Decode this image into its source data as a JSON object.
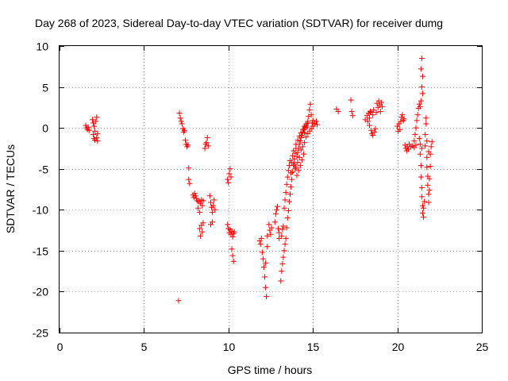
{
  "chart_data": {
    "type": "scatter",
    "title": "Day 268 of 2023, Sidereal Day-to-day VTEC variation (SDTVAR) for receiver dumg",
    "xlabel": "GPS time / hours",
    "ylabel": "SDTVAR / TECUs",
    "xlim": [
      0,
      25
    ],
    "ylim": [
      -25,
      10
    ],
    "xticks": [
      0,
      5,
      10,
      15,
      20,
      25
    ],
    "yticks": [
      -25,
      -20,
      -15,
      -10,
      -5,
      0,
      5,
      10
    ],
    "grid": true,
    "marker": "+",
    "color": "#ff0000",
    "series": [
      {
        "name": "SDTVAR",
        "points": [
          [
            1.55,
            0.3
          ],
          [
            1.6,
            0.0
          ],
          [
            1.65,
            -0.2
          ],
          [
            1.7,
            0.1
          ],
          [
            1.75,
            -0.3
          ],
          [
            1.95,
            1.0
          ],
          [
            2.0,
            0.6
          ],
          [
            2.0,
            -0.8
          ],
          [
            2.05,
            -1.3
          ],
          [
            2.05,
            0.2
          ],
          [
            2.1,
            -0.4
          ],
          [
            2.1,
            -1.5
          ],
          [
            2.15,
            0.8
          ],
          [
            2.2,
            1.3
          ],
          [
            2.2,
            -1.2
          ],
          [
            2.25,
            -0.7
          ],
          [
            2.25,
            -1.6
          ],
          [
            7.1,
            1.8
          ],
          [
            7.15,
            1.2
          ],
          [
            7.2,
            0.8
          ],
          [
            7.25,
            0.5
          ],
          [
            7.3,
            -0.1
          ],
          [
            7.35,
            -0.5
          ],
          [
            7.4,
            -0.3
          ],
          [
            7.45,
            -1.5
          ],
          [
            7.5,
            -2.0
          ],
          [
            7.55,
            -2.3
          ],
          [
            7.6,
            -2.1
          ],
          [
            7.65,
            -4.9
          ],
          [
            7.65,
            -6.3
          ],
          [
            7.7,
            -6.8
          ],
          [
            7.05,
            -21.1
          ],
          [
            7.9,
            -8.2
          ],
          [
            7.95,
            -8.5
          ],
          [
            8.0,
            -8.0
          ],
          [
            8.05,
            -8.3
          ],
          [
            8.1,
            -8.6
          ],
          [
            8.15,
            -8.9
          ],
          [
            8.2,
            -9.8
          ],
          [
            8.25,
            -9.0
          ],
          [
            8.3,
            -10.3
          ],
          [
            8.35,
            -9.2
          ],
          [
            8.4,
            -8.8
          ],
          [
            8.45,
            -9.5
          ],
          [
            8.5,
            -8.9
          ],
          [
            8.3,
            -12.3
          ],
          [
            8.35,
            -13.2
          ],
          [
            8.4,
            -11.9
          ],
          [
            8.45,
            -12.7
          ],
          [
            8.5,
            -11.6
          ],
          [
            8.6,
            -2.5
          ],
          [
            8.65,
            -2.0
          ],
          [
            8.7,
            -1.8
          ],
          [
            8.75,
            -1.2
          ],
          [
            8.8,
            -2.2
          ],
          [
            8.9,
            -8.3
          ],
          [
            8.95,
            -9.1
          ],
          [
            9.0,
            -9.7
          ],
          [
            9.05,
            -10.3
          ],
          [
            9.1,
            -9.5
          ],
          [
            9.15,
            -8.8
          ],
          [
            9.2,
            -10.0
          ],
          [
            8.95,
            -11.8
          ],
          [
            9.05,
            -11.5
          ],
          [
            9.95,
            -6.3
          ],
          [
            10.0,
            -6.7
          ],
          [
            10.05,
            -5.6
          ],
          [
            10.1,
            -5.0
          ],
          [
            10.15,
            -6.0
          ],
          [
            9.95,
            -11.8
          ],
          [
            10.0,
            -12.3
          ],
          [
            10.05,
            -12.8
          ],
          [
            10.1,
            -12.4
          ],
          [
            10.15,
            -13.0
          ],
          [
            10.2,
            -12.6
          ],
          [
            10.25,
            -13.3
          ],
          [
            10.3,
            -12.9
          ],
          [
            10.35,
            -12.7
          ],
          [
            10.2,
            -14.8
          ],
          [
            10.25,
            -15.6
          ],
          [
            10.3,
            -16.3
          ],
          [
            11.85,
            -13.8
          ],
          [
            11.9,
            -14.2
          ],
          [
            11.95,
            -13.5
          ],
          [
            12.0,
            -15.2
          ],
          [
            12.05,
            -16.0
          ],
          [
            12.1,
            -17.0
          ],
          [
            12.15,
            -18.2
          ],
          [
            12.2,
            -19.5
          ],
          [
            12.25,
            -20.6
          ],
          [
            12.2,
            -16.5
          ],
          [
            12.3,
            -14.5
          ],
          [
            12.3,
            -13.2
          ],
          [
            12.4,
            -11.8
          ],
          [
            12.45,
            -12.5
          ],
          [
            12.5,
            -13.0
          ],
          [
            12.55,
            -12.2
          ],
          [
            12.75,
            -11.5
          ],
          [
            12.8,
            -10.5
          ],
          [
            12.85,
            -10.0
          ],
          [
            12.9,
            -9.6
          ],
          [
            12.95,
            -12.3
          ],
          [
            13.0,
            -12.8
          ],
          [
            13.0,
            -13.5
          ],
          [
            13.15,
            -13.2
          ],
          [
            13.2,
            -12.4
          ],
          [
            13.25,
            -12.0
          ],
          [
            13.1,
            -18.7
          ],
          [
            13.15,
            -17.5
          ],
          [
            13.2,
            -16.6
          ],
          [
            13.25,
            -15.8
          ],
          [
            13.3,
            -15.0
          ],
          [
            13.35,
            -14.2
          ],
          [
            13.4,
            -13.5
          ],
          [
            13.45,
            -12.2
          ],
          [
            13.5,
            -11.0
          ],
          [
            13.55,
            -10.1
          ],
          [
            13.6,
            -9.0
          ],
          [
            13.65,
            -8.1
          ],
          [
            13.7,
            -7.2
          ],
          [
            13.75,
            -6.3
          ],
          [
            13.8,
            -5.4
          ],
          [
            13.85,
            -4.6
          ],
          [
            13.9,
            -3.8
          ],
          [
            13.95,
            -3.1
          ],
          [
            14.0,
            -2.5
          ],
          [
            13.3,
            -9.8
          ],
          [
            13.35,
            -8.8
          ],
          [
            13.4,
            -7.9
          ],
          [
            13.45,
            -6.9
          ],
          [
            13.5,
            -6.0
          ],
          [
            13.55,
            -5.2
          ],
          [
            13.6,
            -4.6
          ],
          [
            13.65,
            -4.0
          ],
          [
            13.7,
            -5.5
          ],
          [
            13.75,
            -4.2
          ],
          [
            13.8,
            -3.4
          ],
          [
            13.85,
            -2.8
          ],
          [
            13.9,
            -4.4
          ],
          [
            13.95,
            -5.0
          ],
          [
            14.0,
            -2.0
          ],
          [
            14.1,
            -1.5
          ],
          [
            14.2,
            -1.0
          ],
          [
            14.3,
            -0.6
          ],
          [
            14.4,
            -0.2
          ],
          [
            14.5,
            0.2
          ],
          [
            14.6,
            0.5
          ],
          [
            14.7,
            0.8
          ],
          [
            14.75,
            1.4
          ],
          [
            14.8,
            2.2
          ],
          [
            14.85,
            2.9
          ],
          [
            14.9,
            1.6
          ],
          [
            14.95,
            0.6
          ],
          [
            15.0,
            0.9
          ],
          [
            15.1,
            0.5
          ],
          [
            15.2,
            0.8
          ],
          [
            15.25,
            0.4
          ],
          [
            14.05,
            -3.5
          ],
          [
            14.1,
            -3.0
          ],
          [
            14.15,
            -2.5
          ],
          [
            14.2,
            -2.0
          ],
          [
            14.25,
            -1.6
          ],
          [
            14.3,
            -1.2
          ],
          [
            14.35,
            -0.9
          ],
          [
            14.4,
            -0.5
          ],
          [
            14.45,
            -0.2
          ],
          [
            14.5,
            -0.6
          ],
          [
            14.55,
            0.0
          ],
          [
            14.6,
            0.3
          ],
          [
            14.65,
            0.1
          ],
          [
            14.7,
            0.6
          ],
          [
            14.0,
            -4.8
          ],
          [
            14.1,
            -4.2
          ],
          [
            14.2,
            -3.6
          ],
          [
            14.3,
            -2.7
          ],
          [
            14.4,
            -2.3
          ],
          [
            14.5,
            -1.8
          ],
          [
            14.6,
            -1.1
          ],
          [
            14.7,
            -0.7
          ],
          [
            14.8,
            -0.4
          ],
          [
            14.9,
            -0.1
          ],
          [
            15.0,
            0.2
          ],
          [
            14.05,
            -5.8
          ],
          [
            14.15,
            -5.2
          ],
          [
            14.25,
            -4.6
          ],
          [
            14.35,
            -3.9
          ],
          [
            14.45,
            -3.2
          ],
          [
            16.4,
            2.3
          ],
          [
            16.5,
            2.0
          ],
          [
            17.25,
            3.4
          ],
          [
            17.3,
            2.0
          ],
          [
            17.35,
            1.5
          ],
          [
            18.1,
            1.0
          ],
          [
            18.2,
            1.5
          ],
          [
            18.25,
            0.8
          ],
          [
            18.3,
            1.8
          ],
          [
            18.35,
            0.3
          ],
          [
            18.4,
            2.0
          ],
          [
            18.45,
            -0.3
          ],
          [
            18.5,
            -0.7
          ],
          [
            18.55,
            1.6
          ],
          [
            18.6,
            2.2
          ],
          [
            18.65,
            -0.5
          ],
          [
            18.7,
            -0.1
          ],
          [
            18.75,
            1.9
          ],
          [
            18.8,
            3.0
          ],
          [
            18.85,
            2.5
          ],
          [
            18.9,
            3.3
          ],
          [
            18.95,
            2.8
          ],
          [
            19.0,
            2.0
          ],
          [
            19.05,
            3.1
          ],
          [
            19.1,
            2.6
          ],
          [
            18.35,
            1.2
          ],
          [
            18.45,
            1.9
          ],
          [
            18.55,
            -0.9
          ],
          [
            20.0,
            0.2
          ],
          [
            20.05,
            -0.4
          ],
          [
            20.1,
            0.5
          ],
          [
            20.15,
            -0.2
          ],
          [
            20.2,
            0.8
          ],
          [
            20.25,
            1.3
          ],
          [
            20.3,
            1.6
          ],
          [
            20.35,
            0.9
          ],
          [
            20.4,
            1.1
          ],
          [
            20.45,
            -2.1
          ],
          [
            20.5,
            -2.5
          ],
          [
            20.55,
            -2.8
          ],
          [
            20.6,
            -2.3
          ],
          [
            20.65,
            -2.6
          ],
          [
            20.7,
            -2.0
          ],
          [
            20.8,
            -2.3
          ],
          [
            20.9,
            -2.2
          ],
          [
            21.0,
            -2.4
          ],
          [
            21.1,
            -2.1
          ],
          [
            21.0,
            -1.6
          ],
          [
            21.05,
            -0.8
          ],
          [
            21.1,
            0.0
          ],
          [
            21.15,
            0.9
          ],
          [
            21.2,
            1.6
          ],
          [
            21.25,
            2.4
          ],
          [
            21.3,
            2.9
          ],
          [
            21.35,
            2.6
          ],
          [
            21.4,
            7.2
          ],
          [
            21.45,
            8.5
          ],
          [
            21.5,
            6.3
          ],
          [
            21.45,
            5.0
          ],
          [
            21.5,
            4.2
          ],
          [
            21.4,
            3.3
          ],
          [
            21.3,
            -1.3
          ],
          [
            21.35,
            -2.0
          ],
          [
            21.35,
            -3.2
          ],
          [
            21.4,
            -4.6
          ],
          [
            21.4,
            -6.0
          ],
          [
            21.45,
            -7.3
          ],
          [
            21.45,
            -8.4
          ],
          [
            21.5,
            -9.5
          ],
          [
            21.5,
            -10.4
          ],
          [
            21.55,
            -10.9
          ],
          [
            21.55,
            -9.8
          ],
          [
            21.6,
            -9.0
          ],
          [
            21.45,
            -2.5
          ],
          [
            21.65,
            -2.2
          ],
          [
            21.65,
            -0.8
          ],
          [
            21.7,
            0.5
          ],
          [
            21.7,
            1.2
          ],
          [
            21.75,
            -3.6
          ],
          [
            21.75,
            -4.8
          ],
          [
            21.8,
            -5.9
          ],
          [
            21.8,
            -7.0
          ],
          [
            21.85,
            -8.1
          ],
          [
            21.85,
            -9.1
          ],
          [
            21.9,
            -7.6
          ],
          [
            21.9,
            -6.2
          ],
          [
            21.95,
            -4.7
          ],
          [
            21.95,
            -3.2
          ],
          [
            22.0,
            -2.3
          ],
          [
            22.05,
            -1.7
          ],
          [
            21.85,
            -2.9
          ],
          [
            21.75,
            -1.6
          ]
        ]
      }
    ]
  }
}
